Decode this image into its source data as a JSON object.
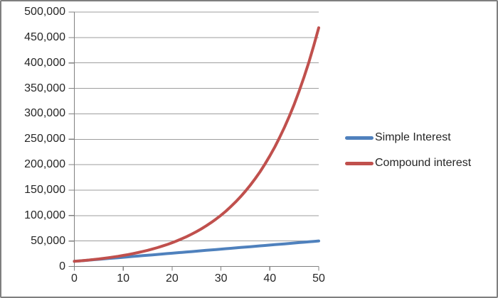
{
  "chart_data": {
    "type": "line",
    "title": "",
    "xlabel": "",
    "ylabel": "",
    "xlim": [
      0,
      50
    ],
    "ylim": [
      0,
      500000
    ],
    "grid": true,
    "legend_position": "right",
    "x": [
      0,
      1,
      2,
      3,
      4,
      5,
      6,
      7,
      8,
      9,
      10,
      11,
      12,
      13,
      14,
      15,
      16,
      17,
      18,
      19,
      20,
      21,
      22,
      23,
      24,
      25,
      26,
      27,
      28,
      29,
      30,
      31,
      32,
      33,
      34,
      35,
      36,
      37,
      38,
      39,
      40,
      41,
      42,
      43,
      44,
      45,
      46,
      47,
      48,
      49,
      50
    ],
    "series": [
      {
        "name": "Simple Interest",
        "color": "#4F81BD",
        "values": [
          10000,
          10800,
          11600,
          12400,
          13200,
          14000,
          14800,
          15600,
          16400,
          17200,
          18000,
          18800,
          19600,
          20400,
          21200,
          22000,
          22800,
          23600,
          24400,
          25200,
          26000,
          26800,
          27600,
          28400,
          29200,
          30000,
          30800,
          31600,
          32400,
          33200,
          34000,
          34800,
          35600,
          36400,
          37200,
          38000,
          38800,
          39600,
          40400,
          41200,
          42000,
          42800,
          43600,
          44400,
          45200,
          46000,
          46800,
          47600,
          48400,
          49200,
          50000
        ]
      },
      {
        "name": "Compound interest",
        "color": "#C0504D",
        "values": [
          10000,
          10800,
          11664,
          12597,
          13605,
          14693,
          15869,
          17138,
          18509,
          19990,
          21589,
          23316,
          25182,
          27196,
          29372,
          31722,
          34259,
          37000,
          39960,
          43157,
          46610,
          50338,
          54365,
          58715,
          63412,
          68485,
          73964,
          79881,
          86271,
          93173,
          100627,
          108677,
          117371,
          126760,
          136901,
          147853,
          159682,
          172456,
          186253,
          201153,
          217245,
          234625,
          253395,
          273666,
          295560,
          319204,
          344741,
          372320,
          402106,
          434274,
          469016
        ]
      }
    ],
    "xticks": {
      "values": [
        0,
        10,
        20,
        30,
        40,
        50
      ],
      "labels": [
        "0",
        "10",
        "20",
        "30",
        "40",
        "50"
      ]
    },
    "yticks": {
      "values": [
        0,
        50000,
        100000,
        150000,
        200000,
        250000,
        300000,
        350000,
        400000,
        450000,
        500000
      ],
      "labels": [
        "0",
        "50,000",
        "100,000",
        "150,000",
        "200,000",
        "250,000",
        "300,000",
        "350,000",
        "400,000",
        "450,000",
        "500,000"
      ]
    }
  },
  "legend": {
    "items": [
      {
        "label": "Simple Interest",
        "color": "#4F81BD"
      },
      {
        "label": "Compound interest",
        "color": "#C0504D"
      }
    ]
  },
  "colors": {
    "series_blue": "#4F81BD",
    "series_red": "#C0504D",
    "gridline": "#9d9d9d",
    "axis": "#808080",
    "frame_border": "#7f7f7f",
    "text": "#262626",
    "background": "#ffffff"
  }
}
